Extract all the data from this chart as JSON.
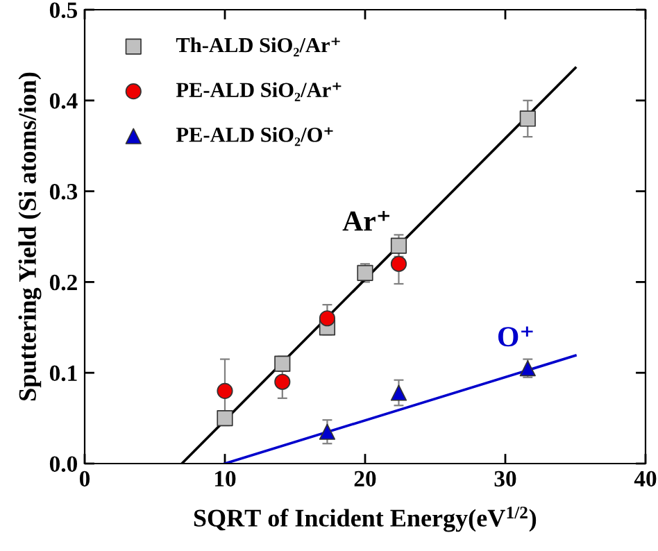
{
  "chart_data": {
    "type": "scatter",
    "xlabel": "SQRT of Incident Energy(eV$^{1/2}$)",
    "ylabel": "Sputtering Yield (Si atoms/ion)",
    "xlim": [
      0,
      40
    ],
    "xticks": [
      0,
      10,
      20,
      30,
      40
    ],
    "ylim": [
      0,
      0.5
    ],
    "yticks": [
      {
        "value": 0,
        "label": "0.0"
      },
      0.1,
      0.2,
      0.3,
      0.4,
      0.5
    ],
    "grid": false,
    "legend": "top left",
    "series": [
      {
        "name": "Th-ALD SiO₂/Ar⁺",
        "marker": "square",
        "color": "#c0c0c0",
        "x": [
          10,
          14.1,
          17.3,
          20,
          22.4,
          31.6
        ],
        "values": [
          0.05,
          0.11,
          0.15,
          0.21,
          0.24,
          0.38
        ],
        "errors": [
          0.008,
          0.008,
          0.008,
          0.01,
          0.012,
          0.02
        ]
      },
      {
        "name": "PE-ALD SiO₂/Ar⁺",
        "marker": "circle",
        "color": "#ee0000",
        "x": [
          10,
          14.1,
          17.3,
          22.4
        ],
        "values": [
          0.08,
          0.09,
          0.16,
          0.22
        ],
        "errors": [
          0.035,
          0.018,
          0.015,
          0.022
        ]
      },
      {
        "name": "PE-ALD SiO₂/O⁺",
        "marker": "triangle",
        "color": "#0000cc",
        "x": [
          17.3,
          22.4,
          31.6
        ],
        "values": [
          0.035,
          0.078,
          0.105
        ],
        "errors": [
          0.013,
          0.014,
          0.01
        ]
      },
      {
        "type": "line",
        "marker": "none",
        "color": "#000000",
        "x": [
          6.93,
          35
        ],
        "values": [
          0,
          0.436
        ]
      },
      {
        "type": "line",
        "marker": "none",
        "color": "#0000cc",
        "x": [
          10,
          35
        ],
        "values": [
          0,
          0.119
        ]
      }
    ],
    "annotations": [
      "Ar⁺",
      "O⁺"
    ]
  }
}
